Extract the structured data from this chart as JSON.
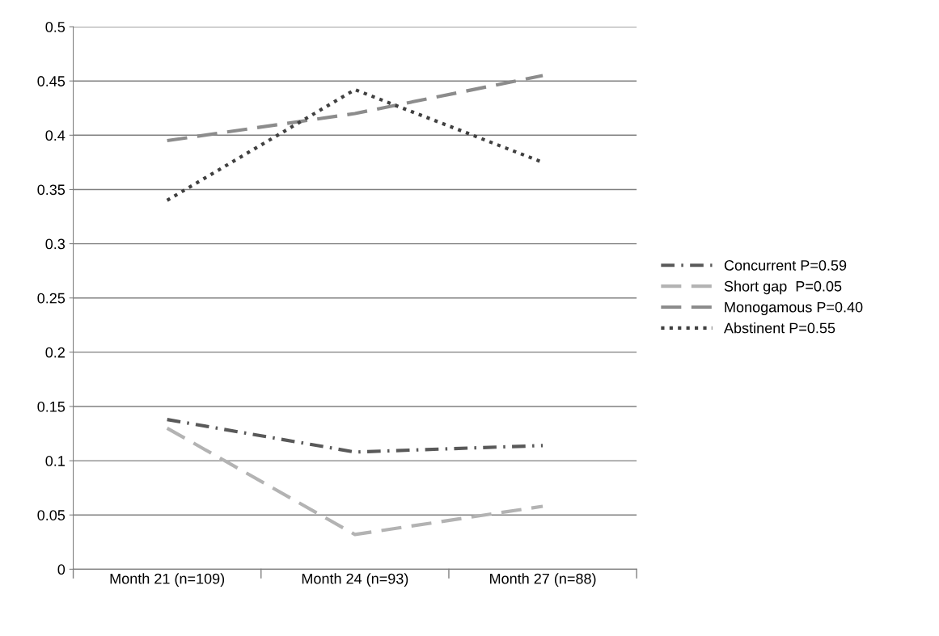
{
  "chart_data": {
    "type": "line",
    "categories": [
      "Month 21 (n=109)",
      "Month 24 (n=93)",
      "Month 27 (n=88)"
    ],
    "series": [
      {
        "name": "Concurrent P=0.59",
        "color": "#595959",
        "line_style": "dashdot",
        "values": [
          0.138,
          0.108,
          0.114
        ]
      },
      {
        "name": "Short gap  P=0.05",
        "color": "#b3b3b3",
        "line_style": "dashed",
        "values": [
          0.13,
          0.032,
          0.058
        ]
      },
      {
        "name": "Monogamous P=0.40",
        "color": "#8c8c8c",
        "line_style": "dashed",
        "values": [
          0.395,
          0.42,
          0.455
        ]
      },
      {
        "name": "Abstinent P=0.55",
        "color": "#404040",
        "line_style": "dotted",
        "values": [
          0.34,
          0.442,
          0.375
        ]
      }
    ],
    "ylim": [
      0,
      0.5
    ],
    "yticks": [
      0,
      0.05,
      0.1,
      0.15,
      0.2,
      0.25,
      0.3,
      0.35,
      0.4,
      0.45,
      0.5
    ],
    "grid": "y",
    "legend": "right",
    "marker": "none"
  }
}
